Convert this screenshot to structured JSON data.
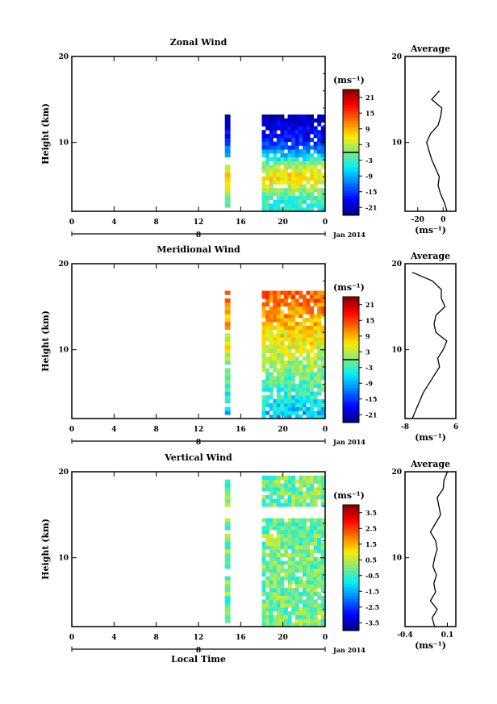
{
  "figure": {
    "x_axis_title": "Local Time",
    "date_label": "Jan 2014",
    "day_label": "8",
    "unit_label": "(ms⁻¹)"
  },
  "chart_data": [
    {
      "type": "heatmap",
      "title": "Zonal Wind",
      "ylabel": "Height (km)",
      "xlabel": "Local Time",
      "x_ticks": [
        "0",
        "4",
        "8",
        "12",
        "16",
        "20",
        "0"
      ],
      "y_ticks": [
        "10",
        "20"
      ],
      "xlim": [
        0,
        24
      ],
      "ylim": [
        2,
        20
      ],
      "colorbar": {
        "unit": "(ms⁻¹)",
        "ticks": [
          "21",
          "15",
          "9",
          "3",
          "-3",
          "-9",
          "-15",
          "-21"
        ],
        "range": [
          -24,
          24
        ],
        "contour": 0
      },
      "data_coverage": [
        [
          14.5,
          15.0
        ],
        [
          18.0,
          23.7
        ]
      ],
      "average_profile": {
        "title": "Average",
        "x_ticks": [
          "-20",
          "0"
        ],
        "xlim": [
          -30,
          10
        ],
        "unit": "(ms⁻¹)",
        "height_km": [
          2,
          3,
          4,
          5,
          6,
          7,
          8,
          9,
          10,
          11,
          12,
          13,
          14,
          15,
          16
        ],
        "value": [
          3,
          1,
          -2,
          -4,
          -3,
          -6,
          -9,
          -11,
          -13,
          -10,
          -4,
          -2,
          -1,
          -9,
          -3
        ]
      }
    },
    {
      "type": "heatmap",
      "title": "Meridional Wind",
      "ylabel": "Height (km)",
      "xlabel": "Local Time",
      "x_ticks": [
        "0",
        "4",
        "8",
        "12",
        "16",
        "20",
        "0"
      ],
      "y_ticks": [
        "10",
        "20"
      ],
      "xlim": [
        0,
        24
      ],
      "ylim": [
        2,
        20
      ],
      "colorbar": {
        "unit": "(ms⁻¹)",
        "ticks": [
          "21",
          "15",
          "9",
          "3",
          "-3",
          "-9",
          "-15",
          "-21"
        ],
        "range": [
          -24,
          24
        ],
        "contour": 0
      },
      "data_coverage": [
        [
          14.5,
          15.0
        ],
        [
          18.0,
          23.7
        ]
      ],
      "average_profile": {
        "title": "Average",
        "x_ticks": [
          "-8",
          "6"
        ],
        "xlim": [
          -8,
          6
        ],
        "unit": "(ms⁻¹)",
        "height_km": [
          2,
          3,
          4,
          5,
          6,
          7,
          8,
          9,
          10,
          11,
          12,
          13,
          14,
          15,
          16,
          17,
          18,
          19
        ],
        "value": [
          -6,
          -5,
          -4,
          -3,
          -1.5,
          0,
          1.5,
          1,
          2.5,
          3.5,
          0.5,
          0,
          0.5,
          3,
          2,
          2,
          -0.5,
          -6
        ]
      }
    },
    {
      "type": "heatmap",
      "title": "Vertical Wind",
      "ylabel": "Height (km)",
      "xlabel": "Local Time",
      "x_ticks": [
        "0",
        "4",
        "8",
        "12",
        "16",
        "20",
        "0"
      ],
      "y_ticks": [
        "10",
        "20"
      ],
      "xlim": [
        0,
        24
      ],
      "ylim": [
        2,
        20
      ],
      "colorbar": {
        "unit": "(ms⁻¹)",
        "ticks": [
          "3.5",
          "2.5",
          "1.5",
          "0.5",
          "-0.5",
          "-1.5",
          "-2.5",
          "-3.5"
        ],
        "range": [
          -4,
          4
        ]
      },
      "data_coverage": [
        [
          14.5,
          15.0
        ],
        [
          18.0,
          23.7
        ]
      ],
      "average_profile": {
        "title": "Average",
        "x_ticks": [
          "-0.4",
          "0.1"
        ],
        "xlim": [
          -0.4,
          0.2
        ],
        "unit": "(ms⁻¹)",
        "height_km": [
          2,
          3,
          4,
          5,
          6,
          7,
          8,
          9,
          10,
          11,
          12,
          13,
          14,
          15,
          16,
          17,
          18,
          19,
          20
        ],
        "value": [
          -0.05,
          -0.08,
          -0.02,
          -0.1,
          -0.04,
          -0.06,
          -0.03,
          -0.07,
          -0.05,
          -0.02,
          -0.04,
          -0.1,
          -0.04,
          0.02,
          0.0,
          -0.02,
          0.05,
          0.06,
          0.1
        ]
      }
    }
  ]
}
